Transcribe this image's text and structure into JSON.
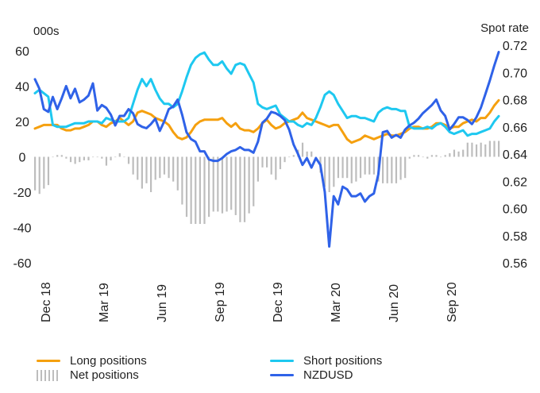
{
  "chart_data": {
    "type": "line",
    "left_axis_title": "000s",
    "right_axis_title": "Spot rate",
    "left_ticks": [
      "60",
      "40",
      "20",
      "0",
      "-20",
      "-40",
      "-60"
    ],
    "right_ticks": [
      "0.72",
      "0.70",
      "0.68",
      "0.66",
      "0.64",
      "0.62",
      "0.60",
      "0.58",
      "0.56"
    ],
    "ylim_left": [
      -60,
      70
    ],
    "ylim_right": [
      0.56,
      0.72
    ],
    "x_ticks": [
      "Dec 18",
      "Mar 19",
      "Jun 19",
      "Sep 19",
      "Dec 19",
      "Mar 20",
      "Jun 20",
      "Sep 20"
    ],
    "x_tick_weeks": [
      0,
      13,
      26,
      39,
      52,
      65,
      78,
      91
    ],
    "n_weeks": 105,
    "series": [
      {
        "name": "Long positions",
        "axis": "left",
        "kind": "line",
        "color": "#f5a00f",
        "values": [
          16,
          17,
          18,
          18,
          18,
          18,
          16,
          15,
          15,
          16,
          16,
          17,
          18,
          20,
          20,
          18,
          17,
          19,
          20,
          22,
          20,
          18,
          20,
          25,
          26,
          25,
          24,
          22,
          21,
          20,
          18,
          14,
          11,
          10,
          11,
          14,
          18,
          20,
          21,
          21,
          21,
          21,
          22,
          19,
          17,
          19,
          16,
          15,
          15,
          14,
          16,
          19,
          21,
          18,
          16,
          17,
          19,
          20,
          21,
          22,
          25,
          22,
          21,
          20,
          19,
          18,
          17,
          18,
          18,
          14,
          10,
          8,
          9,
          10,
          12,
          11,
          10,
          11,
          12,
          13,
          12,
          12,
          13,
          14,
          16,
          17,
          17,
          16,
          16,
          17,
          19,
          19,
          18,
          16,
          17,
          17,
          19,
          20,
          21,
          20,
          22,
          22,
          25,
          29,
          32
        ]
      },
      {
        "name": "Short positions",
        "axis": "left",
        "kind": "line",
        "color": "#1ec8f0",
        "values": [
          36,
          38,
          36,
          34,
          18,
          17,
          17,
          17,
          18,
          19,
          19,
          19,
          20,
          20,
          20,
          19,
          22,
          21,
          20,
          20,
          20,
          22,
          30,
          38,
          44,
          40,
          44,
          38,
          33,
          30,
          30,
          28,
          30,
          37,
          45,
          52,
          56,
          58,
          59,
          55,
          52,
          52,
          54,
          50,
          47,
          52,
          53,
          52,
          47,
          42,
          30,
          28,
          27,
          28,
          29,
          24,
          22,
          20,
          20,
          18,
          17,
          19,
          18,
          22,
          28,
          35,
          37,
          35,
          30,
          26,
          22,
          23,
          23,
          22,
          22,
          21,
          20,
          25,
          27,
          28,
          27,
          27,
          26,
          26,
          17,
          16,
          16,
          16,
          17,
          16,
          18,
          19,
          17,
          14,
          13,
          14,
          15,
          12,
          13,
          13,
          14,
          15,
          16,
          20,
          23
        ]
      },
      {
        "name": "NZDUSD",
        "axis": "right",
        "kind": "line",
        "color": "#2f62e8",
        "values": [
          0.695,
          0.688,
          0.673,
          0.671,
          0.682,
          0.673,
          0.681,
          0.69,
          0.681,
          0.688,
          0.678,
          0.68,
          0.683,
          0.692,
          0.672,
          0.676,
          0.674,
          0.669,
          0.661,
          0.668,
          0.668,
          0.673,
          0.67,
          0.662,
          0.66,
          0.659,
          0.662,
          0.666,
          0.657,
          0.664,
          0.673,
          0.675,
          0.68,
          0.669,
          0.656,
          0.651,
          0.649,
          0.642,
          0.642,
          0.636,
          0.635,
          0.635,
          0.637,
          0.64,
          0.642,
          0.643,
          0.645,
          0.643,
          0.643,
          0.641,
          0.649,
          0.663,
          0.666,
          0.671,
          0.67,
          0.668,
          0.665,
          0.658,
          0.647,
          0.64,
          0.632,
          0.637,
          0.63,
          0.637,
          0.632,
          0.612,
          0.572,
          0.609,
          0.603,
          0.616,
          0.614,
          0.609,
          0.609,
          0.611,
          0.605,
          0.609,
          0.611,
          0.625,
          0.656,
          0.657,
          0.652,
          0.654,
          0.652,
          0.658,
          0.661,
          0.663,
          0.666,
          0.67,
          0.673,
          0.676,
          0.68,
          0.672,
          0.668,
          0.658,
          0.662,
          0.667,
          0.667,
          0.665,
          0.662,
          0.667,
          0.674,
          0.684,
          0.694,
          0.705,
          0.715
        ]
      },
      {
        "name": "Net positions",
        "axis": "left",
        "kind": "bar",
        "color": "#bdbdbd",
        "values": [
          -19,
          -21,
          -18,
          -16,
          0,
          1,
          1,
          -1,
          -3,
          -4,
          -3,
          -2,
          -2,
          0,
          0,
          -1,
          -5,
          -2,
          0,
          2,
          0,
          -4,
          -10,
          -13,
          -18,
          -15,
          -20,
          -13,
          -12,
          -10,
          -12,
          -14,
          -19,
          -27,
          -34,
          -38,
          -38,
          -38,
          -38,
          -34,
          -31,
          -31,
          -32,
          -31,
          -30,
          -33,
          -37,
          -37,
          -32,
          -28,
          -14,
          -6,
          -6,
          -10,
          -13,
          -7,
          -3,
          0,
          1,
          4,
          8,
          3,
          3,
          -2,
          -9,
          -17,
          -20,
          -17,
          -12,
          -12,
          -12,
          -15,
          -14,
          -12,
          -10,
          -10,
          -10,
          -14,
          -15,
          -15,
          -15,
          -15,
          -13,
          -12,
          -1,
          1,
          1,
          0,
          -1,
          1,
          1,
          0,
          1,
          2,
          4,
          3,
          4,
          8,
          8,
          7,
          8,
          7,
          9,
          9,
          9
        ]
      }
    ]
  }
}
